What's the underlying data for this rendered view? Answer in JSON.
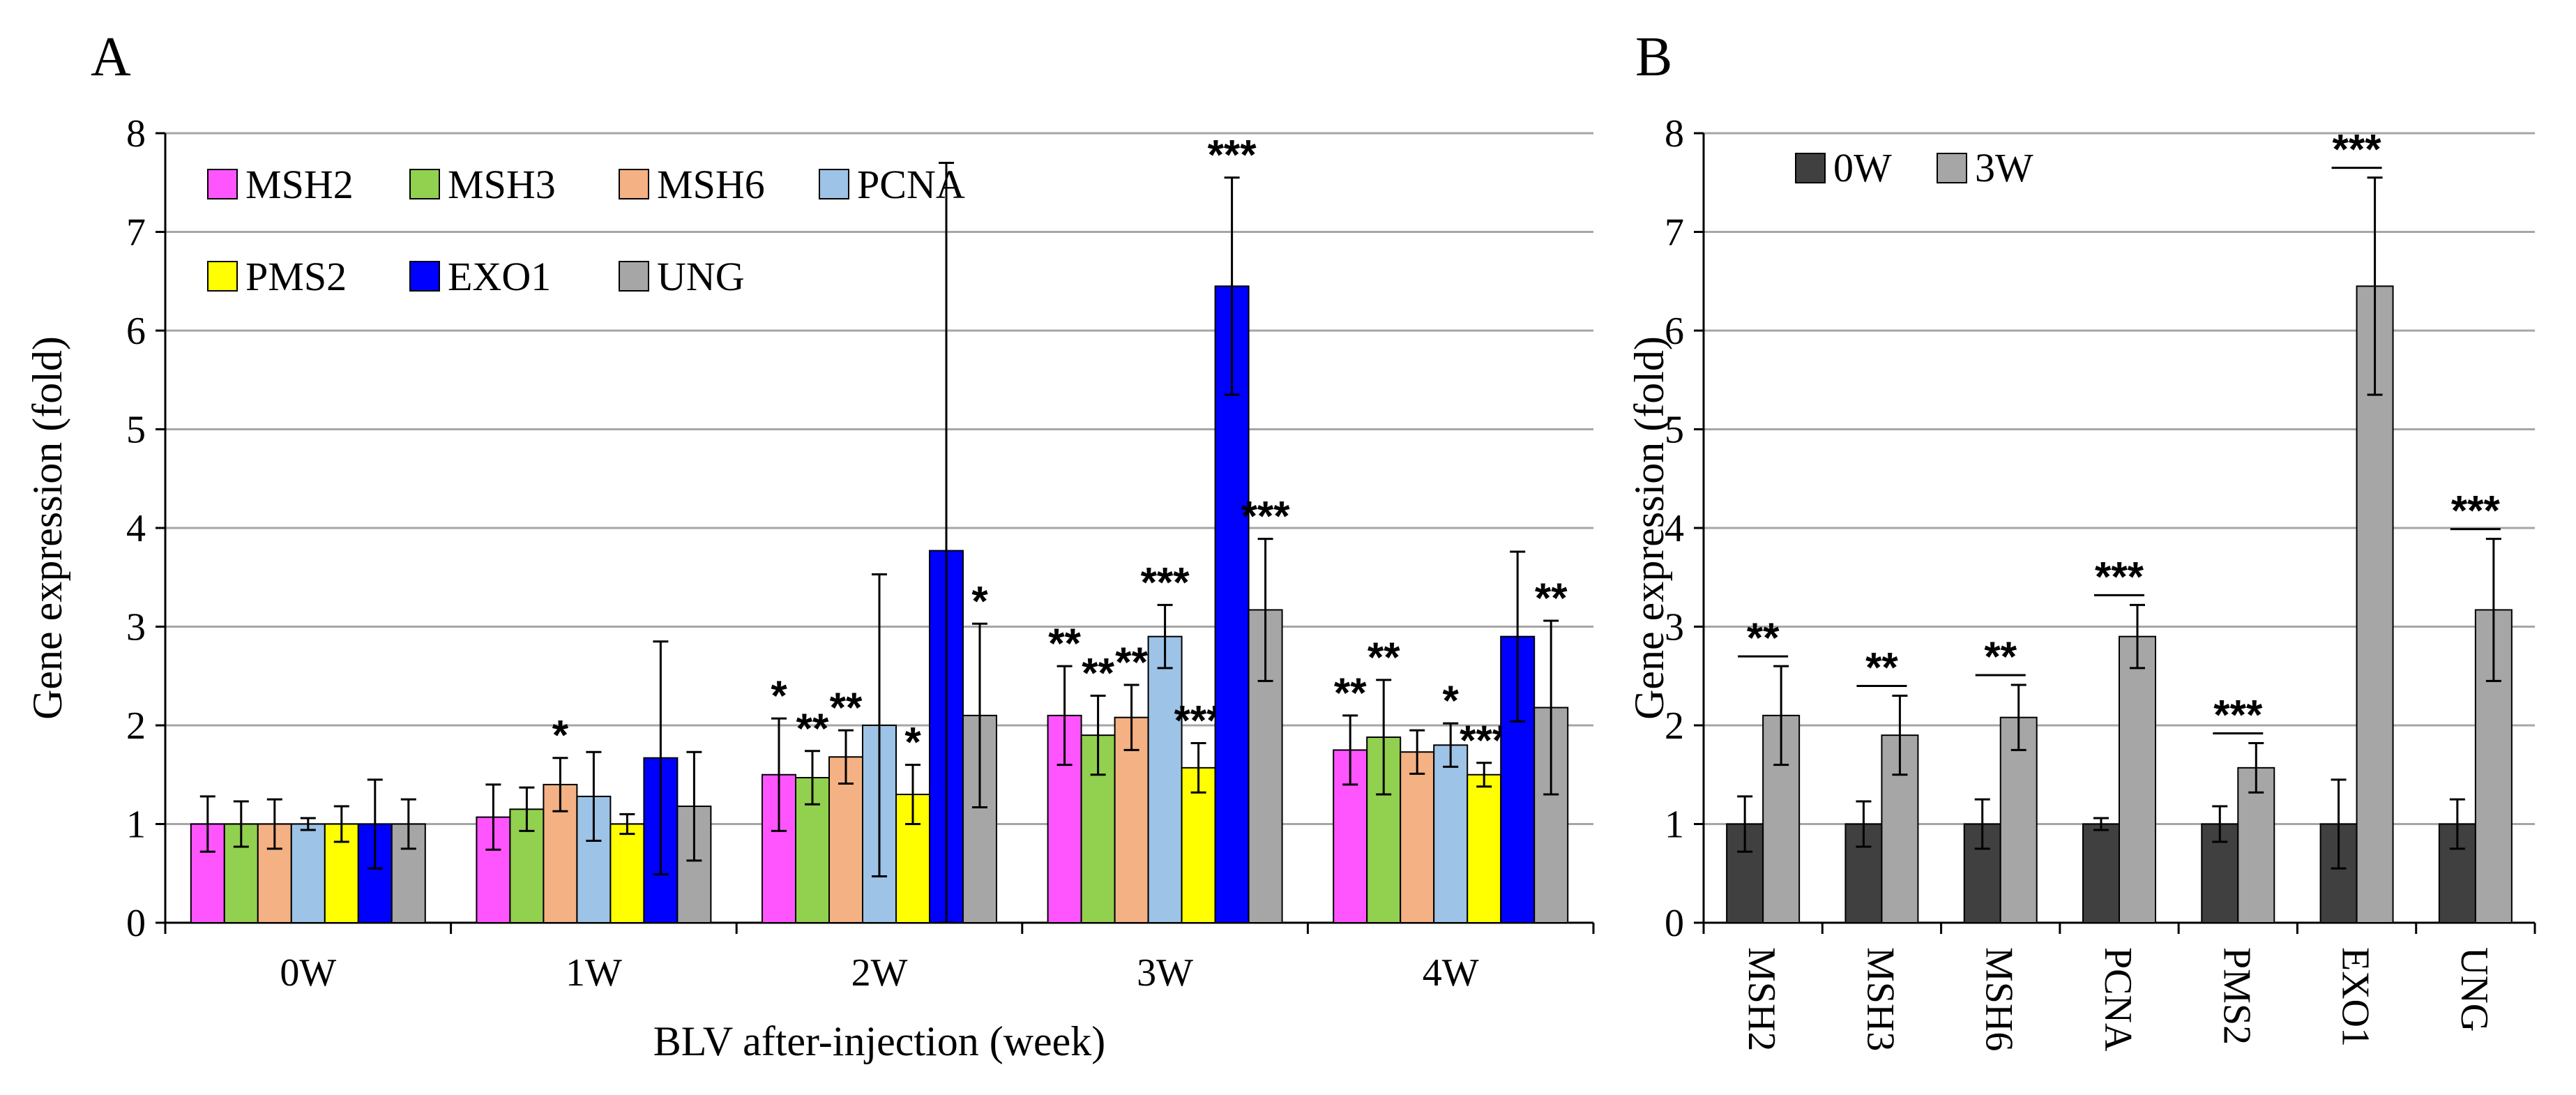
{
  "chart_data": [
    {
      "panel": "A",
      "type": "bar",
      "xlabel": "BLV after-injection (week)",
      "ylabel": "Gene expression (fold)",
      "ylim": [
        0,
        8
      ],
      "yticks": [
        "0",
        "1",
        "2",
        "3",
        "4",
        "5",
        "6",
        "7",
        "8"
      ],
      "grid": true,
      "legend_position": "top-left",
      "categories": [
        "0W",
        "1W",
        "2W",
        "3W",
        "4W"
      ],
      "series": [
        {
          "name": "MSH2",
          "color": "#ff55ff",
          "values": [
            1.0,
            1.07,
            1.5,
            2.1,
            1.75
          ],
          "errors": [
            0.28,
            0.33,
            0.57,
            0.5,
            0.35
          ],
          "stars": [
            "",
            "",
            "*",
            "**",
            "**"
          ]
        },
        {
          "name": "MSH3",
          "color": "#92d050",
          "values": [
            1.0,
            1.15,
            1.47,
            1.9,
            1.88
          ],
          "errors": [
            0.23,
            0.22,
            0.27,
            0.4,
            0.58
          ],
          "stars": [
            "",
            "",
            "**",
            "**",
            "**"
          ]
        },
        {
          "name": "MSH6",
          "color": "#f4b183",
          "values": [
            1.0,
            1.4,
            1.68,
            2.08,
            1.73
          ],
          "errors": [
            0.25,
            0.27,
            0.27,
            0.33,
            0.22
          ],
          "stars": [
            "",
            "*",
            "**",
            "**",
            ""
          ]
        },
        {
          "name": "PCNA",
          "color": "#9dc3e6",
          "values": [
            1.0,
            1.28,
            2.0,
            2.9,
            1.8
          ],
          "errors": [
            0.06,
            0.45,
            1.53,
            0.32,
            0.22
          ],
          "stars": [
            "",
            "",
            "",
            "***",
            "*"
          ]
        },
        {
          "name": "PMS2",
          "color": "#ffff00",
          "values": [
            1.0,
            1.0,
            1.3,
            1.57,
            1.5
          ],
          "errors": [
            0.18,
            0.1,
            0.3,
            0.25,
            0.12
          ],
          "stars": [
            "",
            "",
            "*",
            "***",
            "***"
          ]
        },
        {
          "name": "EXO1",
          "color": "#0000ff",
          "values": [
            1.0,
            1.67,
            3.77,
            6.45,
            2.9
          ],
          "errors": [
            0.45,
            1.18,
            3.93,
            1.1,
            0.86
          ],
          "stars": [
            "",
            "",
            "",
            "***",
            ""
          ]
        },
        {
          "name": "UNG",
          "color": "#a6a6a6",
          "values": [
            1.0,
            1.18,
            2.1,
            3.17,
            2.18
          ],
          "errors": [
            0.25,
            0.55,
            0.93,
            0.72,
            0.88
          ],
          "stars": [
            "",
            "",
            "*",
            "***",
            "**"
          ]
        }
      ]
    },
    {
      "panel": "B",
      "type": "bar",
      "xlabel": "",
      "ylabel": "Gene expression (fold)",
      "ylim": [
        0,
        8
      ],
      "yticks": [
        "0",
        "1",
        "2",
        "3",
        "4",
        "5",
        "6",
        "7",
        "8"
      ],
      "grid": true,
      "legend_position": "top-left",
      "categories": [
        "MSH2",
        "MSH3",
        "MSH6",
        "PCNA",
        "PMS2",
        "EXO1",
        "UNG"
      ],
      "series": [
        {
          "name": "0W",
          "color": "#404040",
          "values": [
            1.0,
            1.0,
            1.0,
            1.0,
            1.0,
            1.0,
            1.0
          ],
          "errors": [
            0.28,
            0.23,
            0.25,
            0.06,
            0.18,
            0.45,
            0.25
          ]
        },
        {
          "name": "3W",
          "color": "#a6a6a6",
          "values": [
            2.1,
            1.9,
            2.08,
            2.9,
            1.57,
            6.45,
            3.17
          ],
          "errors": [
            0.5,
            0.4,
            0.33,
            0.32,
            0.25,
            1.1,
            0.72
          ]
        }
      ],
      "significance": [
        "**",
        "**",
        "**",
        "***",
        "***",
        "***",
        "***"
      ]
    }
  ],
  "figure": {
    "panel_a_label": "A",
    "panel_b_label": "B"
  }
}
